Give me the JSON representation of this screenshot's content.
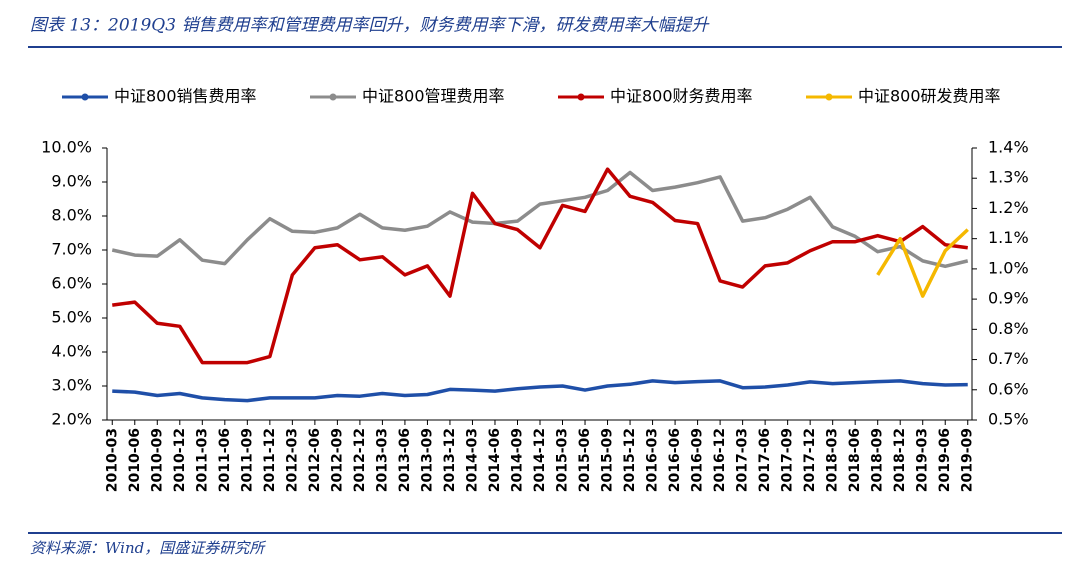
{
  "title": "图表 13：2019Q3 销售费用率和管理费用率回升，财务费用率下滑，研发费用率大幅提升",
  "source": "资料来源：Wind，国盛证券研究所",
  "chart_data": {
    "type": "line",
    "categories": [
      "2010-03",
      "2010-06",
      "2010-09",
      "2010-12",
      "2011-03",
      "2011-06",
      "2011-09",
      "2011-12",
      "2012-03",
      "2012-06",
      "2012-09",
      "2012-12",
      "2013-03",
      "2013-06",
      "2013-09",
      "2013-12",
      "2014-03",
      "2014-06",
      "2014-09",
      "2014-12",
      "2015-03",
      "2015-06",
      "2015-09",
      "2015-12",
      "2016-03",
      "2016-06",
      "2016-09",
      "2016-12",
      "2017-03",
      "2017-06",
      "2017-09",
      "2017-12",
      "2018-03",
      "2018-06",
      "2018-09",
      "2018-12",
      "2019-03",
      "2019-06",
      "2019-09"
    ],
    "series": [
      {
        "name": "中证800销售费用率",
        "color": "#1f4fa8",
        "axis": "y",
        "values": [
          2.85,
          2.82,
          2.72,
          2.78,
          2.65,
          2.6,
          2.57,
          2.65,
          2.65,
          2.65,
          2.72,
          2.7,
          2.78,
          2.72,
          2.75,
          2.9,
          2.88,
          2.85,
          2.92,
          2.97,
          3.0,
          2.88,
          3.0,
          3.05,
          3.15,
          3.1,
          3.13,
          3.15,
          2.95,
          2.97,
          3.03,
          3.12,
          3.07,
          3.1,
          3.13,
          3.15,
          3.07,
          3.03,
          3.04
        ]
      },
      {
        "name": "中证800管理费用率",
        "color": "#8c8c8c",
        "axis": "y",
        "values": [
          7.0,
          6.85,
          6.82,
          7.3,
          6.7,
          6.6,
          7.3,
          7.92,
          7.55,
          7.52,
          7.65,
          8.05,
          7.65,
          7.58,
          7.7,
          8.12,
          7.82,
          7.78,
          7.85,
          8.35,
          8.45,
          8.55,
          8.75,
          9.28,
          8.75,
          8.85,
          8.98,
          9.15,
          7.85,
          7.95,
          8.2,
          8.55,
          7.68,
          7.4,
          6.95,
          7.1,
          6.68,
          6.52,
          6.68
        ]
      },
      {
        "name": "中证800财务费用率",
        "color": "#c00000",
        "axis": "y2",
        "values": [
          0.88,
          0.89,
          0.82,
          0.81,
          0.69,
          0.69,
          0.69,
          0.71,
          0.98,
          1.07,
          1.08,
          1.03,
          1.04,
          0.98,
          1.01,
          0.91,
          1.25,
          1.15,
          1.13,
          1.07,
          1.21,
          1.19,
          1.33,
          1.24,
          1.22,
          1.16,
          1.15,
          0.96,
          0.94,
          1.01,
          1.02,
          1.06,
          1.09,
          1.09,
          1.11,
          1.09,
          1.14,
          1.08,
          1.07
        ]
      },
      {
        "name": "中证800研发费用率",
        "color": "#f5b800",
        "axis": "y2",
        "values": [
          null,
          null,
          null,
          null,
          null,
          null,
          null,
          null,
          null,
          null,
          null,
          null,
          null,
          null,
          null,
          null,
          null,
          null,
          null,
          null,
          null,
          null,
          null,
          null,
          null,
          null,
          null,
          null,
          null,
          null,
          null,
          null,
          null,
          null,
          0.98,
          1.1,
          0.91,
          1.06,
          1.13
        ]
      }
    ],
    "ylim": [
      2,
      10
    ],
    "yticks": [
      {
        "value": 2,
        "label": "2.0%"
      },
      {
        "value": 3,
        "label": "3.0%"
      },
      {
        "value": 4,
        "label": "4.0%"
      },
      {
        "value": 5,
        "label": "5.0%"
      },
      {
        "value": 6,
        "label": "6.0%"
      },
      {
        "value": 7,
        "label": "7.0%"
      },
      {
        "value": 8,
        "label": "8.0%"
      },
      {
        "value": 9,
        "label": "9.0%"
      },
      {
        "value": 10,
        "label": "10.0%"
      }
    ],
    "y2lim": [
      0.5,
      1.4
    ],
    "y2ticks": [
      {
        "value": 0.5,
        "label": "0.5%"
      },
      {
        "value": 0.6,
        "label": "0.6%"
      },
      {
        "value": 0.7,
        "label": "0.7%"
      },
      {
        "value": 0.8,
        "label": "0.8%"
      },
      {
        "value": 0.9,
        "label": "0.9%"
      },
      {
        "value": 1.0,
        "label": "1.0%"
      },
      {
        "value": 1.1,
        "label": "1.1%"
      },
      {
        "value": 1.2,
        "label": "1.2%"
      },
      {
        "value": 1.3,
        "label": "1.3%"
      },
      {
        "value": 1.4,
        "label": "1.4%"
      }
    ],
    "legend": "top"
  }
}
